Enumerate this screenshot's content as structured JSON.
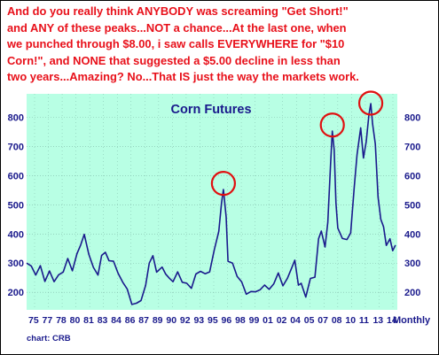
{
  "headline": {
    "lines": [
      "And do you really think ANYBODY was screaming \"Get Short!\"",
      "and ANY of these peaks...NOT a chance...At the last one, when",
      "we punched through $8.00, i saw calls EVERYWHERE for \"$10",
      "Corn!\", and NONE that suggested a $5.00 decline in less than",
      "two years...Amazing? No...That IS just the way the markets work."
    ]
  },
  "credit": "chart: CRB",
  "colors": {
    "headline": "#e8101a",
    "plot_bg": "#b8ffe4",
    "series": "#1a1a8c",
    "circle": "#e01010",
    "grid": "#7fb9a8"
  },
  "chart_data": {
    "type": "line",
    "title": "Corn Futures",
    "frequency_label": "Monthly",
    "xlabel": "",
    "ylabel": "",
    "x_tick_labels": [
      "75",
      "77",
      "78",
      "80",
      "81",
      "83",
      "84",
      "86",
      "87",
      "89",
      "90",
      "92",
      "93",
      "95",
      "96",
      "98",
      "99",
      "01",
      "02",
      "04",
      "05",
      "07",
      "08",
      "10",
      "11",
      "13",
      "14"
    ],
    "y_ticks": [
      200,
      300,
      400,
      500,
      600,
      700,
      800
    ],
    "ylim": [
      140,
      880
    ],
    "xlim": [
      1975.0,
      2015.5
    ],
    "grid": true,
    "highlighted_peaks": [
      {
        "x": 1996.5,
        "y": 555
      },
      {
        "x": 2008.4,
        "y": 755
      },
      {
        "x": 2012.6,
        "y": 830
      }
    ],
    "series": [
      {
        "x": [
          1975.0,
          1975.5,
          1976.0,
          1976.5,
          1977.0,
          1977.5,
          1978.0,
          1978.5,
          1979.0,
          1979.5,
          1980.0,
          1980.5,
          1980.9,
          1981.3,
          1981.8,
          1982.3,
          1982.8,
          1983.2,
          1983.6,
          1984.0,
          1984.5,
          1985.0,
          1985.5,
          1986.0,
          1986.5,
          1987.0,
          1987.5,
          1988.0,
          1988.4,
          1988.8,
          1989.2,
          1989.8,
          1990.2,
          1990.6,
          1991.0,
          1991.5,
          1992.0,
          1992.5,
          1993.0,
          1993.5,
          1994.0,
          1994.5,
          1995.0,
          1995.5,
          1996.0,
          1996.3,
          1996.5,
          1996.8,
          1997.0,
          1997.5,
          1998.0,
          1998.5,
          1999.0,
          1999.5,
          2000.0,
          2000.5,
          2001.0,
          2001.5,
          2002.0,
          2002.5,
          2003.0,
          2003.5,
          2004.0,
          2004.3,
          2004.7,
          2005.0,
          2005.5,
          2006.0,
          2006.5,
          2006.9,
          2007.2,
          2007.6,
          2007.9,
          2008.2,
          2008.4,
          2008.6,
          2008.8,
          2009.0,
          2009.5,
          2010.0,
          2010.4,
          2010.8,
          2011.1,
          2011.5,
          2011.8,
          2012.1,
          2012.4,
          2012.6,
          2012.8,
          2013.1,
          2013.4,
          2013.7,
          2014.0,
          2014.3,
          2014.7,
          2015.0,
          2015.3
        ],
        "values": [
          300,
          285,
          270,
          275,
          240,
          265,
          250,
          260,
          275,
          305,
          290,
          330,
          370,
          385,
          330,
          280,
          270,
          310,
          340,
          300,
          320,
          265,
          240,
          200,
          175,
          160,
          180,
          210,
          300,
          320,
          280,
          270,
          265,
          240,
          250,
          270,
          240,
          220,
          230,
          260,
          280,
          250,
          270,
          340,
          420,
          490,
          555,
          450,
          320,
          300,
          260,
          225,
          210,
          200,
          210,
          195,
          225,
          205,
          240,
          250,
          225,
          240,
          300,
          310,
          230,
          220,
          200,
          245,
          260,
          370,
          410,
          350,
          450,
          620,
          755,
          680,
          520,
          420,
          390,
          370,
          420,
          560,
          680,
          750,
          660,
          710,
          820,
          830,
          780,
          700,
          540,
          450,
          430,
          350,
          400,
          340,
          370
        ]
      }
    ]
  }
}
